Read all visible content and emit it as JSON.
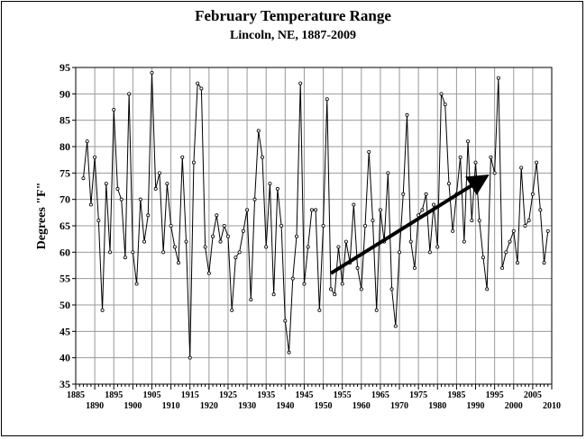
{
  "chart_data": {
    "type": "line",
    "title": "February Temperature Range",
    "subtitle": "Lincoln, NE, 1887-2009",
    "xlabel": "",
    "ylabel": "Degrees \"F\"",
    "xlim": [
      1885,
      2010
    ],
    "ylim": [
      35,
      95
    ],
    "yticks": [
      35,
      40,
      45,
      50,
      55,
      60,
      65,
      70,
      75,
      80,
      85,
      90,
      95
    ],
    "xticks_top": [
      1885,
      1895,
      1905,
      1915,
      1925,
      1935,
      1945,
      1955,
      1965,
      1975,
      1985,
      1995,
      2005
    ],
    "xticks_bottom": [
      1890,
      1900,
      1910,
      1920,
      1930,
      1940,
      1950,
      1960,
      1970,
      1980,
      1990,
      2000,
      2010
    ],
    "grid": true,
    "series": [
      {
        "x": [
          1887,
          1888,
          1889,
          1890,
          1891,
          1892,
          1893,
          1894,
          1895,
          1896,
          1897,
          1898,
          1899,
          1900,
          1901,
          1902,
          1903,
          1904,
          1905,
          1906,
          1907,
          1908,
          1909,
          1910,
          1911,
          1912,
          1913,
          1914,
          1915,
          1916,
          1917,
          1918,
          1919,
          1920,
          1921,
          1922,
          1923,
          1924,
          1925,
          1926,
          1927,
          1928,
          1929,
          1930,
          1931,
          1932,
          1933,
          1934,
          1935,
          1936,
          1937,
          1938,
          1939,
          1940,
          1941,
          1942,
          1943,
          1944,
          1945,
          1946,
          1947,
          1948,
          1949,
          1950,
          1951,
          1952,
          1953,
          1954,
          1955,
          1956,
          1957,
          1958,
          1959,
          1960,
          1961,
          1962,
          1963,
          1964,
          1965,
          1966,
          1967,
          1968,
          1969,
          1970,
          1971,
          1972,
          1973,
          1974,
          1975,
          1976,
          1977,
          1978,
          1979,
          1980,
          1981,
          1982,
          1983,
          1984,
          1985,
          1986,
          1987,
          1988,
          1989,
          1990,
          1991,
          1992,
          1993,
          1994,
          1995,
          1996,
          1997,
          1998,
          1999,
          2000,
          2001,
          2002,
          2003,
          2004,
          2005,
          2006,
          2007,
          2008,
          2009
        ],
        "values": [
          74,
          81,
          69,
          78,
          66,
          49,
          73,
          60,
          87,
          72,
          70,
          59,
          90,
          60,
          54,
          70,
          62,
          67,
          94,
          72,
          75,
          60,
          73,
          65,
          61,
          58,
          78,
          62,
          40,
          77,
          92,
          91,
          61,
          56,
          63,
          67,
          62,
          65,
          63,
          49,
          59,
          60,
          64,
          68,
          51,
          70,
          83,
          78,
          61,
          73,
          52,
          72,
          65,
          47,
          41,
          55,
          63,
          92,
          54,
          61,
          68,
          68,
          49,
          65,
          89,
          53,
          52,
          61,
          54,
          62,
          58,
          69,
          57,
          53,
          65,
          79,
          66,
          49,
          68,
          62,
          75,
          53,
          46,
          60,
          71,
          86,
          62,
          57,
          67,
          68,
          71,
          60,
          69,
          61,
          90,
          88,
          73,
          64,
          71,
          78,
          62,
          81,
          66,
          77,
          66,
          59,
          53,
          78,
          75,
          93,
          57,
          60,
          62,
          64,
          58,
          76,
          65,
          66,
          71,
          77,
          68,
          58,
          64
        ]
      }
    ],
    "annotations": [
      {
        "type": "arrow",
        "from": [
          1952,
          56
        ],
        "to": [
          1992,
          74
        ]
      }
    ]
  }
}
